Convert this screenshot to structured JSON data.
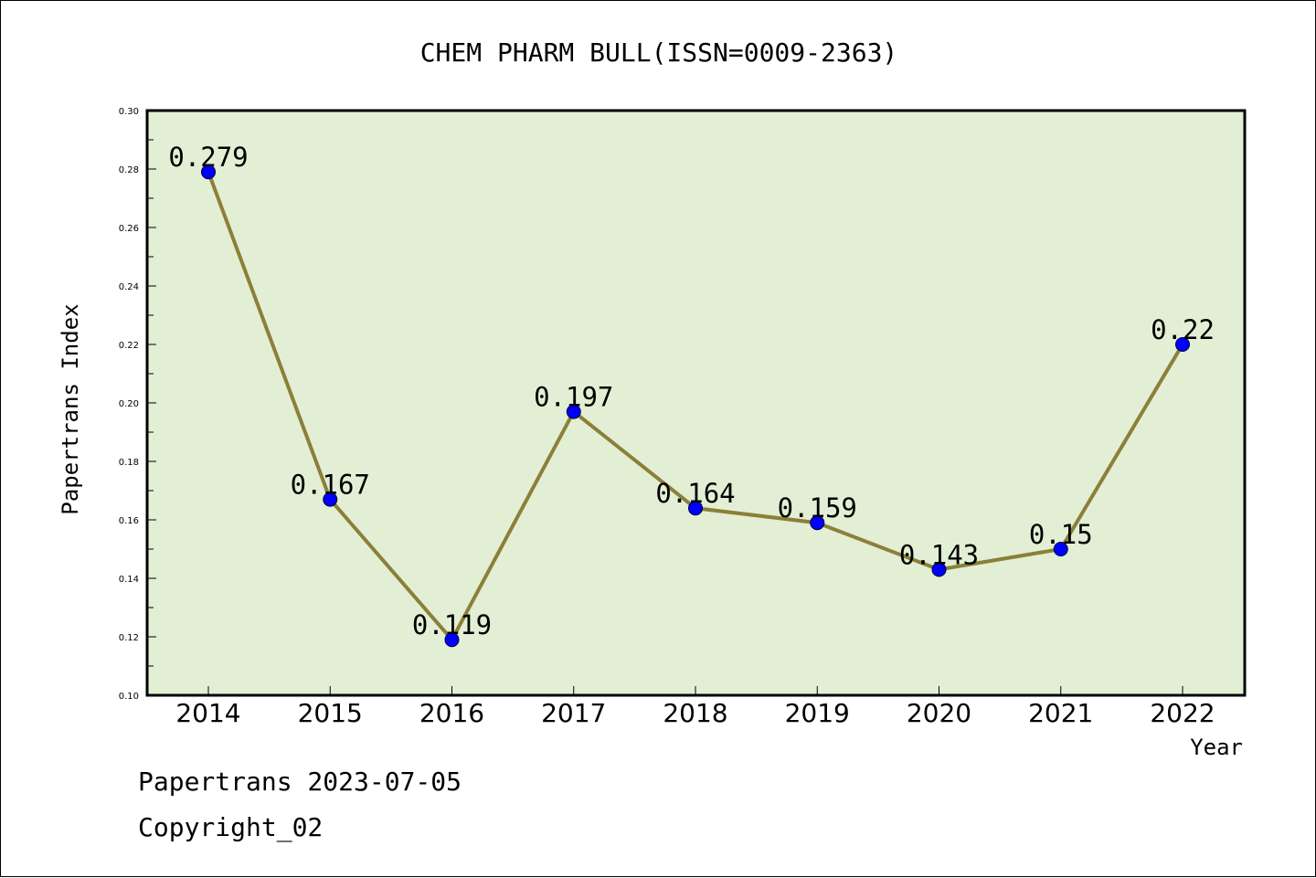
{
  "chart_data": {
    "type": "line",
    "title": "CHEM PHARM BULL(ISSN=0009-2363)",
    "xlabel": "Year",
    "ylabel": "Papertrans Index",
    "categories": [
      "2014",
      "2015",
      "2016",
      "2017",
      "2018",
      "2019",
      "2020",
      "2021",
      "2022"
    ],
    "values": [
      0.279,
      0.167,
      0.119,
      0.197,
      0.164,
      0.159,
      0.143,
      0.15,
      0.22
    ],
    "data_labels": [
      "0.279",
      "0.167",
      "0.119",
      "0.197",
      "0.164",
      "0.159",
      "0.143",
      "0.15",
      "0.22"
    ],
    "ylim": [
      0.1,
      0.3
    ],
    "yticks": [
      "0.10",
      "0.12",
      "0.14",
      "0.16",
      "0.18",
      "0.20",
      "0.22",
      "0.24",
      "0.26",
      "0.28",
      "0.30"
    ],
    "grid": false,
    "plot_background": "#e2efd5",
    "line_color": "#8c7f38",
    "marker_color": "#0000ff"
  },
  "footer": {
    "line1": "Papertrans 2023-07-05",
    "line2": "Copyright_02"
  }
}
